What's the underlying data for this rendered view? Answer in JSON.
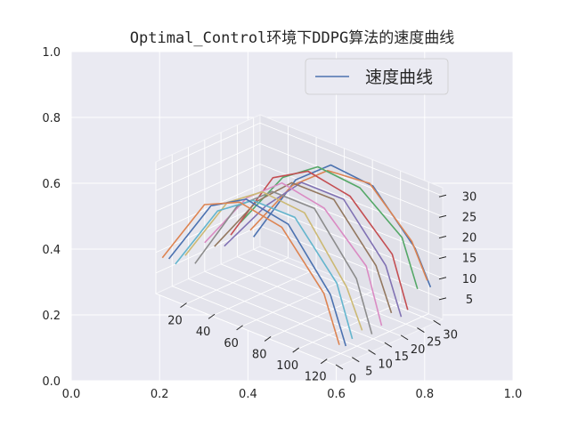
{
  "chart_data": {
    "type": "line",
    "title": "Optimal_Control环境下DDPG算法的速度曲线",
    "legend": {
      "label": "速度曲线",
      "placement": "top-right"
    },
    "outer_axes": {
      "x_ticks": [
        "0.0",
        "0.2",
        "0.4",
        "0.6",
        "0.8",
        "1.0"
      ],
      "y_ticks": [
        "0.0",
        "0.2",
        "0.4",
        "0.6",
        "0.8",
        "1.0"
      ],
      "grid": true
    },
    "axes3d": {
      "x_ticks": [
        "20",
        "40",
        "60",
        "80",
        "100",
        "120"
      ],
      "y_ticks": [
        "0",
        "5",
        "10",
        "15",
        "20",
        "25",
        "30"
      ],
      "z_ticks": [
        "5",
        "10",
        "15",
        "20",
        "25",
        "30"
      ],
      "xlim": [
        0,
        130
      ],
      "ylim": [
        0,
        32
      ],
      "zlim": [
        0,
        32
      ]
    },
    "colors": [
      "#4c72b0",
      "#dd8452",
      "#55a868",
      "#c44e52",
      "#8172b3",
      "#937860",
      "#da8bc3",
      "#8c8c8c",
      "#ccb974",
      "#64b5cd"
    ],
    "series": [
      {
        "x": [
          0,
          30,
          55,
          85,
          115,
          126
        ],
        "y": [
          30,
          30,
          30,
          30,
          30,
          30
        ],
        "z": [
          3,
          21,
          28,
          27,
          16,
          8
        ]
      },
      {
        "x": [
          0,
          30,
          55,
          85,
          115,
          126
        ],
        "y": [
          29,
          29,
          29,
          29,
          29,
          29
        ],
        "z": [
          5,
          20,
          27,
          28,
          18,
          10
        ]
      },
      {
        "x": [
          0,
          30,
          55,
          85,
          115,
          126
        ],
        "y": [
          26,
          26,
          26,
          26,
          26,
          26
        ],
        "z": [
          8,
          23,
          29,
          28,
          20,
          9
        ]
      },
      {
        "x": [
          0,
          30,
          55,
          85,
          115,
          126
        ],
        "y": [
          23,
          23,
          23,
          23,
          23,
          23
        ],
        "z": [
          6,
          24,
          29,
          27,
          17,
          5
        ]
      },
      {
        "x": [
          0,
          30,
          55,
          85,
          115,
          126
        ],
        "y": [
          21,
          21,
          21,
          21,
          21,
          21
        ],
        "z": [
          4,
          18,
          27,
          27,
          15,
          4
        ]
      },
      {
        "x": [
          0,
          30,
          55,
          85,
          115,
          126
        ],
        "y": [
          18,
          18,
          18,
          18,
          18,
          18
        ],
        "z": [
          5,
          20,
          28,
          28,
          16,
          6
        ]
      },
      {
        "x": [
          0,
          30,
          55,
          85,
          115,
          126
        ],
        "y": [
          15,
          15,
          15,
          15,
          15,
          15
        ],
        "z": [
          7,
          22,
          29,
          27,
          17,
          4
        ]
      },
      {
        "x": [
          0,
          30,
          55,
          85,
          115,
          126
        ],
        "y": [
          12,
          12,
          12,
          12,
          12,
          12
        ],
        "z": [
          3,
          21,
          28,
          28,
          15,
          3
        ]
      },
      {
        "x": [
          0,
          30,
          55,
          85,
          115,
          126
        ],
        "y": [
          9,
          9,
          9,
          9,
          9,
          9
        ],
        "z": [
          6,
          23,
          29,
          28,
          14,
          5
        ]
      },
      {
        "x": [
          0,
          30,
          55,
          85,
          115,
          126
        ],
        "y": [
          6,
          6,
          6,
          6,
          6,
          6
        ],
        "z": [
          5,
          22,
          28,
          28,
          16,
          4
        ]
      },
      {
        "x": [
          0,
          30,
          55,
          85,
          115,
          126
        ],
        "y": [
          4,
          4,
          4,
          4,
          4,
          4
        ],
        "z": [
          7,
          24,
          29,
          27,
          14,
          3
        ]
      },
      {
        "x": [
          0,
          30,
          55,
          85,
          115,
          126
        ],
        "y": [
          2,
          2,
          2,
          2,
          2,
          2
        ],
        "z": [
          8,
          25,
          29,
          27,
          15,
          4
        ]
      }
    ]
  }
}
